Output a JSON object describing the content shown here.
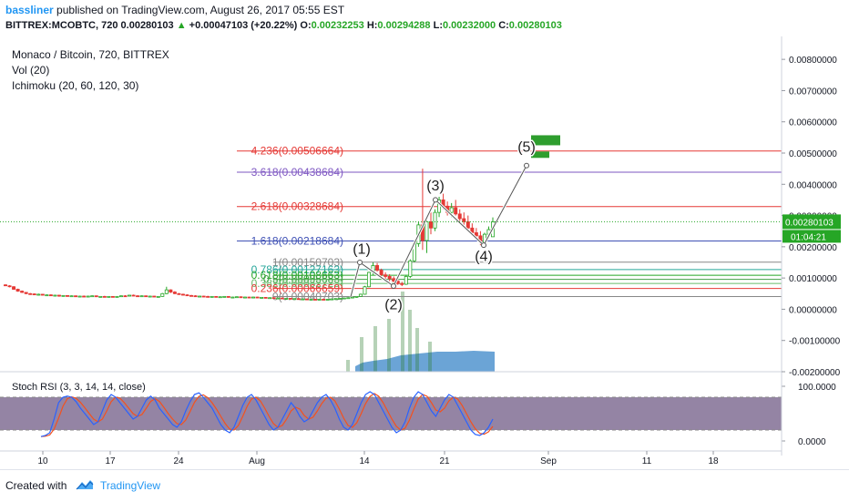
{
  "header": {
    "author": "bassliner",
    "published_text": "published on TradingView.com, August 26, 2017 05:55 EST",
    "symbol_text": "BITTREX:MCOBTC, 720",
    "last_price": "0.00280103",
    "change_arrow": "▲",
    "change_text": "+0.00047103 (+20.22%)",
    "o_label": "O:",
    "o_value": "0.00232253",
    "h_label": "H:",
    "h_value": "0.00294288",
    "l_label": "L:",
    "l_value": "0.00232000",
    "c_label": "C:",
    "c_value": "0.00280103"
  },
  "legend": {
    "title": "Monaco / Bitcoin, 720, BITTREX",
    "vol": "Vol (20)",
    "ichimoku": "Ichimoku (20, 60, 120, 30)",
    "stoch": "Stoch RSI (3, 3, 14, 14, close)"
  },
  "footer": {
    "created_with": "Created with",
    "brand": "TradingView"
  },
  "colors": {
    "up": "#26a626",
    "down": "#e53935",
    "fib_red": "#e53935",
    "fib_purple": "#7e57c2",
    "fib_blue": "#3f51b5",
    "stoch_k": "#2962ff",
    "stoch_d": "#f4511e",
    "stoch_band": "#3d1f5a",
    "volume": "#3a86c8"
  },
  "chart_data": {
    "type": "candlestick",
    "title": "Monaco / Bitcoin, 720, BITTREX",
    "y_axis": {
      "ticks": [
        "0.00800000",
        "0.00700000",
        "0.00600000",
        "0.00500000",
        "0.00400000",
        "0.00300000",
        "0.00200000",
        "0.00100000",
        "0.00000000",
        "-0.00100000",
        "-0.00200000"
      ],
      "range": [
        -0.002,
        0.0085
      ]
    },
    "x_axis": {
      "ticks": [
        "10",
        "17",
        "24",
        "Aug",
        "14",
        "21",
        "Sep",
        "11",
        "18"
      ]
    },
    "price_label": "0.00280103",
    "countdown_label": "01:04:21",
    "fib_levels": [
      {
        "label": "4.236(0.00506664)",
        "value": 0.00506664,
        "color": "#e53935"
      },
      {
        "label": "3.618(0.00438684)",
        "value": 0.00438684,
        "color": "#7e57c2"
      },
      {
        "label": "2.618(0.00328684)",
        "value": 0.00328684,
        "color": "#e53935"
      },
      {
        "label": "1.618(0.00218684)",
        "value": 0.00218684,
        "color": "#3f51b5"
      },
      {
        "label": "1(0.00150703)",
        "value": 0.00150703,
        "color": "#888888"
      },
      {
        "label": "0.786(0.00127163)",
        "value": 0.00127163,
        "color": "#26a69a"
      },
      {
        "label": "0.618(0.00108663)",
        "value": 0.00108663,
        "color": "#26a626"
      },
      {
        "label": "0.5(0.00095683)",
        "value": 0.00095683,
        "color": "#43a047"
      },
      {
        "label": "0.382(0.00082723)",
        "value": 0.00082723,
        "color": "#66bb6a"
      },
      {
        "label": "0.236(0.00066659)",
        "value": 0.00066659,
        "color": "#e53935"
      },
      {
        "label": "0(0.00040703)",
        "value": 0.00040703,
        "color": "#888888"
      }
    ],
    "waves": [
      {
        "label": "(1)",
        "x": "Aug 12",
        "value": 0.0015
      },
      {
        "label": "(2)",
        "x": "Aug 16",
        "value": 0.00074
      },
      {
        "label": "(3)",
        "x": "Aug 20",
        "value": 0.0035
      },
      {
        "label": "(4)",
        "x": "Aug 24",
        "value": 0.00205
      },
      {
        "label": "(5)",
        "x": "Aug 28",
        "value": 0.0046
      }
    ],
    "candles_ohlc": [
      [
        0.00078,
        0.0008,
        0.00074,
        0.00075
      ],
      [
        0.00075,
        0.00077,
        0.0007,
        0.00072
      ],
      [
        0.00072,
        0.00074,
        0.00062,
        0.00064
      ],
      [
        0.00064,
        0.00066,
        0.00056,
        0.00058
      ],
      [
        0.00058,
        0.0006,
        0.00052,
        0.00054
      ],
      [
        0.00054,
        0.00055,
        0.00048,
        0.0005
      ],
      [
        0.0005,
        0.00052,
        0.00046,
        0.00049
      ],
      [
        0.00049,
        0.00051,
        0.00045,
        0.00047
      ],
      [
        0.00047,
        0.0005,
        0.00044,
        0.00048
      ],
      [
        0.00048,
        0.00049,
        0.00044,
        0.00045
      ],
      [
        0.00045,
        0.00047,
        0.00042,
        0.00046
      ],
      [
        0.00046,
        0.00048,
        0.00043,
        0.00044
      ],
      [
        0.00044,
        0.00046,
        0.00041,
        0.00045
      ],
      [
        0.00045,
        0.00046,
        0.0004,
        0.00042
      ],
      [
        0.00042,
        0.00045,
        0.00041,
        0.00044
      ],
      [
        0.00044,
        0.00045,
        0.0004,
        0.00041
      ],
      [
        0.00041,
        0.00044,
        0.0004,
        0.00043
      ],
      [
        0.00043,
        0.00044,
        0.00039,
        0.0004
      ],
      [
        0.0004,
        0.00043,
        0.00039,
        0.00042
      ],
      [
        0.00042,
        0.00044,
        0.0004,
        0.00041
      ],
      [
        0.00041,
        0.00043,
        0.00039,
        0.00042
      ],
      [
        0.00042,
        0.00044,
        0.0004,
        0.00043
      ],
      [
        0.00043,
        0.00044,
        0.00039,
        0.0004
      ],
      [
        0.0004,
        0.00042,
        0.00038,
        0.00041
      ],
      [
        0.00041,
        0.00043,
        0.00039,
        0.0004
      ],
      [
        0.0004,
        0.00042,
        0.00038,
        0.00041
      ],
      [
        0.00041,
        0.00042,
        0.00038,
        0.00039
      ],
      [
        0.00039,
        0.00042,
        0.00038,
        0.00041
      ],
      [
        0.00041,
        0.00044,
        0.0004,
        0.00043
      ],
      [
        0.00043,
        0.00045,
        0.00041,
        0.00042
      ],
      [
        0.00042,
        0.00046,
        0.00041,
        0.00045
      ],
      [
        0.00045,
        0.00047,
        0.00042,
        0.00043
      ],
      [
        0.00043,
        0.00045,
        0.00041,
        0.00042
      ],
      [
        0.00042,
        0.00044,
        0.0004,
        0.00043
      ],
      [
        0.00043,
        0.00044,
        0.0004,
        0.00041
      ],
      [
        0.00041,
        0.00043,
        0.00039,
        0.00042
      ],
      [
        0.00042,
        0.00043,
        0.00039,
        0.0004
      ],
      [
        0.0004,
        0.00042,
        0.00038,
        0.00041
      ],
      [
        0.00041,
        0.00052,
        0.0004,
        0.0005
      ],
      [
        0.0005,
        0.00072,
        0.00048,
        0.00062
      ],
      [
        0.00062,
        0.00064,
        0.00052,
        0.00055
      ],
      [
        0.00055,
        0.00058,
        0.00048,
        0.0005
      ],
      [
        0.0005,
        0.00052,
        0.00046,
        0.00048
      ],
      [
        0.00048,
        0.0005,
        0.00044,
        0.00046
      ],
      [
        0.00046,
        0.00048,
        0.00043,
        0.00044
      ],
      [
        0.00044,
        0.00046,
        0.00041,
        0.00043
      ],
      [
        0.00043,
        0.00045,
        0.0004,
        0.00041
      ],
      [
        0.00041,
        0.00043,
        0.00039,
        0.00042
      ],
      [
        0.00042,
        0.00043,
        0.0004,
        0.00041
      ],
      [
        0.00041,
        0.00043,
        0.00039,
        0.0004
      ],
      [
        0.0004,
        0.00042,
        0.00038,
        0.00041
      ],
      [
        0.00041,
        0.00042,
        0.00038,
        0.00039
      ],
      [
        0.00039,
        0.00041,
        0.00037,
        0.0004
      ],
      [
        0.0004,
        0.00042,
        0.00038,
        0.00041
      ],
      [
        0.00041,
        0.00042,
        0.00037,
        0.00038
      ],
      [
        0.00038,
        0.0004,
        0.00036,
        0.00039
      ],
      [
        0.00039,
        0.00041,
        0.00037,
        0.0004
      ],
      [
        0.0004,
        0.00041,
        0.00036,
        0.00037
      ],
      [
        0.00037,
        0.0004,
        0.00036,
        0.00039
      ],
      [
        0.00039,
        0.0004,
        0.00036,
        0.00038
      ],
      [
        0.00038,
        0.0004,
        0.00036,
        0.00039
      ],
      [
        0.00039,
        0.0004,
        0.00036,
        0.00037
      ],
      [
        0.00037,
        0.00039,
        0.00035,
        0.00038
      ],
      [
        0.00038,
        0.00039,
        0.00035,
        0.00036
      ],
      [
        0.00036,
        0.00038,
        0.00034,
        0.00037
      ],
      [
        0.00037,
        0.00038,
        0.00034,
        0.00035
      ],
      [
        0.00035,
        0.00037,
        0.00033,
        0.00036
      ],
      [
        0.00036,
        0.00037,
        0.00033,
        0.00034
      ],
      [
        0.00034,
        0.00036,
        0.00032,
        0.00035
      ],
      [
        0.00035,
        0.00036,
        0.00032,
        0.00033
      ],
      [
        0.00033,
        0.00035,
        0.00031,
        0.00034
      ],
      [
        0.00034,
        0.00035,
        0.00031,
        0.00032
      ],
      [
        0.00032,
        0.00034,
        0.0003,
        0.00033
      ],
      [
        0.00033,
        0.00034,
        0.0003,
        0.00031
      ],
      [
        0.00031,
        0.00033,
        0.00029,
        0.00032
      ],
      [
        0.00032,
        0.00033,
        0.00029,
        0.0003
      ],
      [
        0.0003,
        0.00033,
        0.00029,
        0.00032
      ],
      [
        0.00032,
        0.00034,
        0.0003,
        0.00031
      ],
      [
        0.00031,
        0.00033,
        0.00029,
        0.00032
      ],
      [
        0.00032,
        0.00034,
        0.0003,
        0.00033
      ],
      [
        0.00033,
        0.00035,
        0.00031,
        0.00034
      ],
      [
        0.00034,
        0.00036,
        0.00032,
        0.00035
      ],
      [
        0.00035,
        0.00037,
        0.00033,
        0.00036
      ],
      [
        0.00036,
        0.00038,
        0.00034,
        0.00037
      ],
      [
        0.00037,
        0.0004,
        0.00035,
        0.00039
      ],
      [
        0.00039,
        0.00042,
        0.00037,
        0.00041
      ],
      [
        0.00041,
        0.0005,
        0.0004,
        0.00048
      ],
      [
        0.00048,
        0.00075,
        0.00047,
        0.00072
      ],
      [
        0.00072,
        0.0012,
        0.0007,
        0.00118
      ],
      [
        0.00118,
        0.0015,
        0.0011,
        0.0014
      ],
      [
        0.0014,
        0.00148,
        0.0012,
        0.00125
      ],
      [
        0.00125,
        0.0013,
        0.001,
        0.0011
      ],
      [
        0.0011,
        0.00118,
        0.00095,
        0.00105
      ],
      [
        0.00105,
        0.00112,
        0.0009,
        0.00098
      ],
      [
        0.00098,
        0.00105,
        0.00085,
        0.0009
      ],
      [
        0.0009,
        0.00095,
        0.00078,
        0.00082
      ],
      [
        0.00082,
        0.00088,
        0.00074,
        0.0008
      ],
      [
        0.0008,
        0.0011,
        0.00078,
        0.00105
      ],
      [
        0.00105,
        0.0016,
        0.001,
        0.00155
      ],
      [
        0.00155,
        0.0022,
        0.0015,
        0.0021
      ],
      [
        0.0021,
        0.0028,
        0.002,
        0.0027
      ],
      [
        0.0027,
        0.0045,
        0.0019,
        0.0022
      ],
      [
        0.0022,
        0.003,
        0.0018,
        0.0028
      ],
      [
        0.0028,
        0.0031,
        0.0024,
        0.0026
      ],
      [
        0.0026,
        0.0032,
        0.0025,
        0.0031
      ],
      [
        0.0031,
        0.0036,
        0.00295,
        0.0035
      ],
      [
        0.0035,
        0.0037,
        0.0032,
        0.0033
      ],
      [
        0.0033,
        0.00345,
        0.003,
        0.0031
      ],
      [
        0.0031,
        0.0034,
        0.00295,
        0.00325
      ],
      [
        0.00325,
        0.0035,
        0.003,
        0.00305
      ],
      [
        0.00305,
        0.0032,
        0.0028,
        0.0029
      ],
      [
        0.0029,
        0.0031,
        0.0027,
        0.0028
      ],
      [
        0.0028,
        0.003,
        0.00255,
        0.0026
      ],
      [
        0.0026,
        0.00275,
        0.00235,
        0.00245
      ],
      [
        0.00245,
        0.0026,
        0.00225,
        0.00235
      ],
      [
        0.00235,
        0.0025,
        0.00205,
        0.00215
      ],
      [
        0.00215,
        0.00245,
        0.00205,
        0.0024
      ],
      [
        0.0024,
        0.00265,
        0.00232,
        0.00255
      ],
      [
        0.00232,
        0.00294,
        0.00232,
        0.0028
      ]
    ]
  }
}
